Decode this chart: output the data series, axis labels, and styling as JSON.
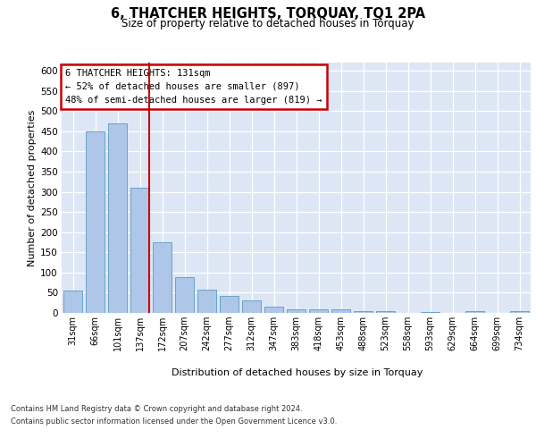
{
  "title": "6, THATCHER HEIGHTS, TORQUAY, TQ1 2PA",
  "subtitle": "Size of property relative to detached houses in Torquay",
  "xlabel": "Distribution of detached houses by size in Torquay",
  "ylabel": "Number of detached properties",
  "categories": [
    "31sqm",
    "66sqm",
    "101sqm",
    "137sqm",
    "172sqm",
    "207sqm",
    "242sqm",
    "277sqm",
    "312sqm",
    "347sqm",
    "383sqm",
    "418sqm",
    "453sqm",
    "488sqm",
    "523sqm",
    "558sqm",
    "593sqm",
    "629sqm",
    "664sqm",
    "699sqm",
    "734sqm"
  ],
  "values": [
    55,
    450,
    470,
    310,
    175,
    88,
    58,
    42,
    32,
    15,
    8,
    8,
    8,
    5,
    5,
    0,
    3,
    0,
    5,
    0,
    5
  ],
  "bar_color": "#aec6e8",
  "bar_edge_color": "#5a9bc4",
  "vline_index": 3,
  "vline_color": "#cc0000",
  "annotation_line1": "6 THATCHER HEIGHTS: 131sqm",
  "annotation_line2": "← 52% of detached houses are smaller (897)",
  "annotation_line3": "48% of semi-detached houses are larger (819) →",
  "annotation_box_facecolor": "#ffffff",
  "annotation_box_edgecolor": "#cc0000",
  "ylim": [
    0,
    620
  ],
  "yticks": [
    0,
    50,
    100,
    150,
    200,
    250,
    300,
    350,
    400,
    450,
    500,
    550,
    600
  ],
  "plot_bgcolor": "#dce6f5",
  "footer_line1": "Contains HM Land Registry data © Crown copyright and database right 2024.",
  "footer_line2": "Contains public sector information licensed under the Open Government Licence v3.0."
}
